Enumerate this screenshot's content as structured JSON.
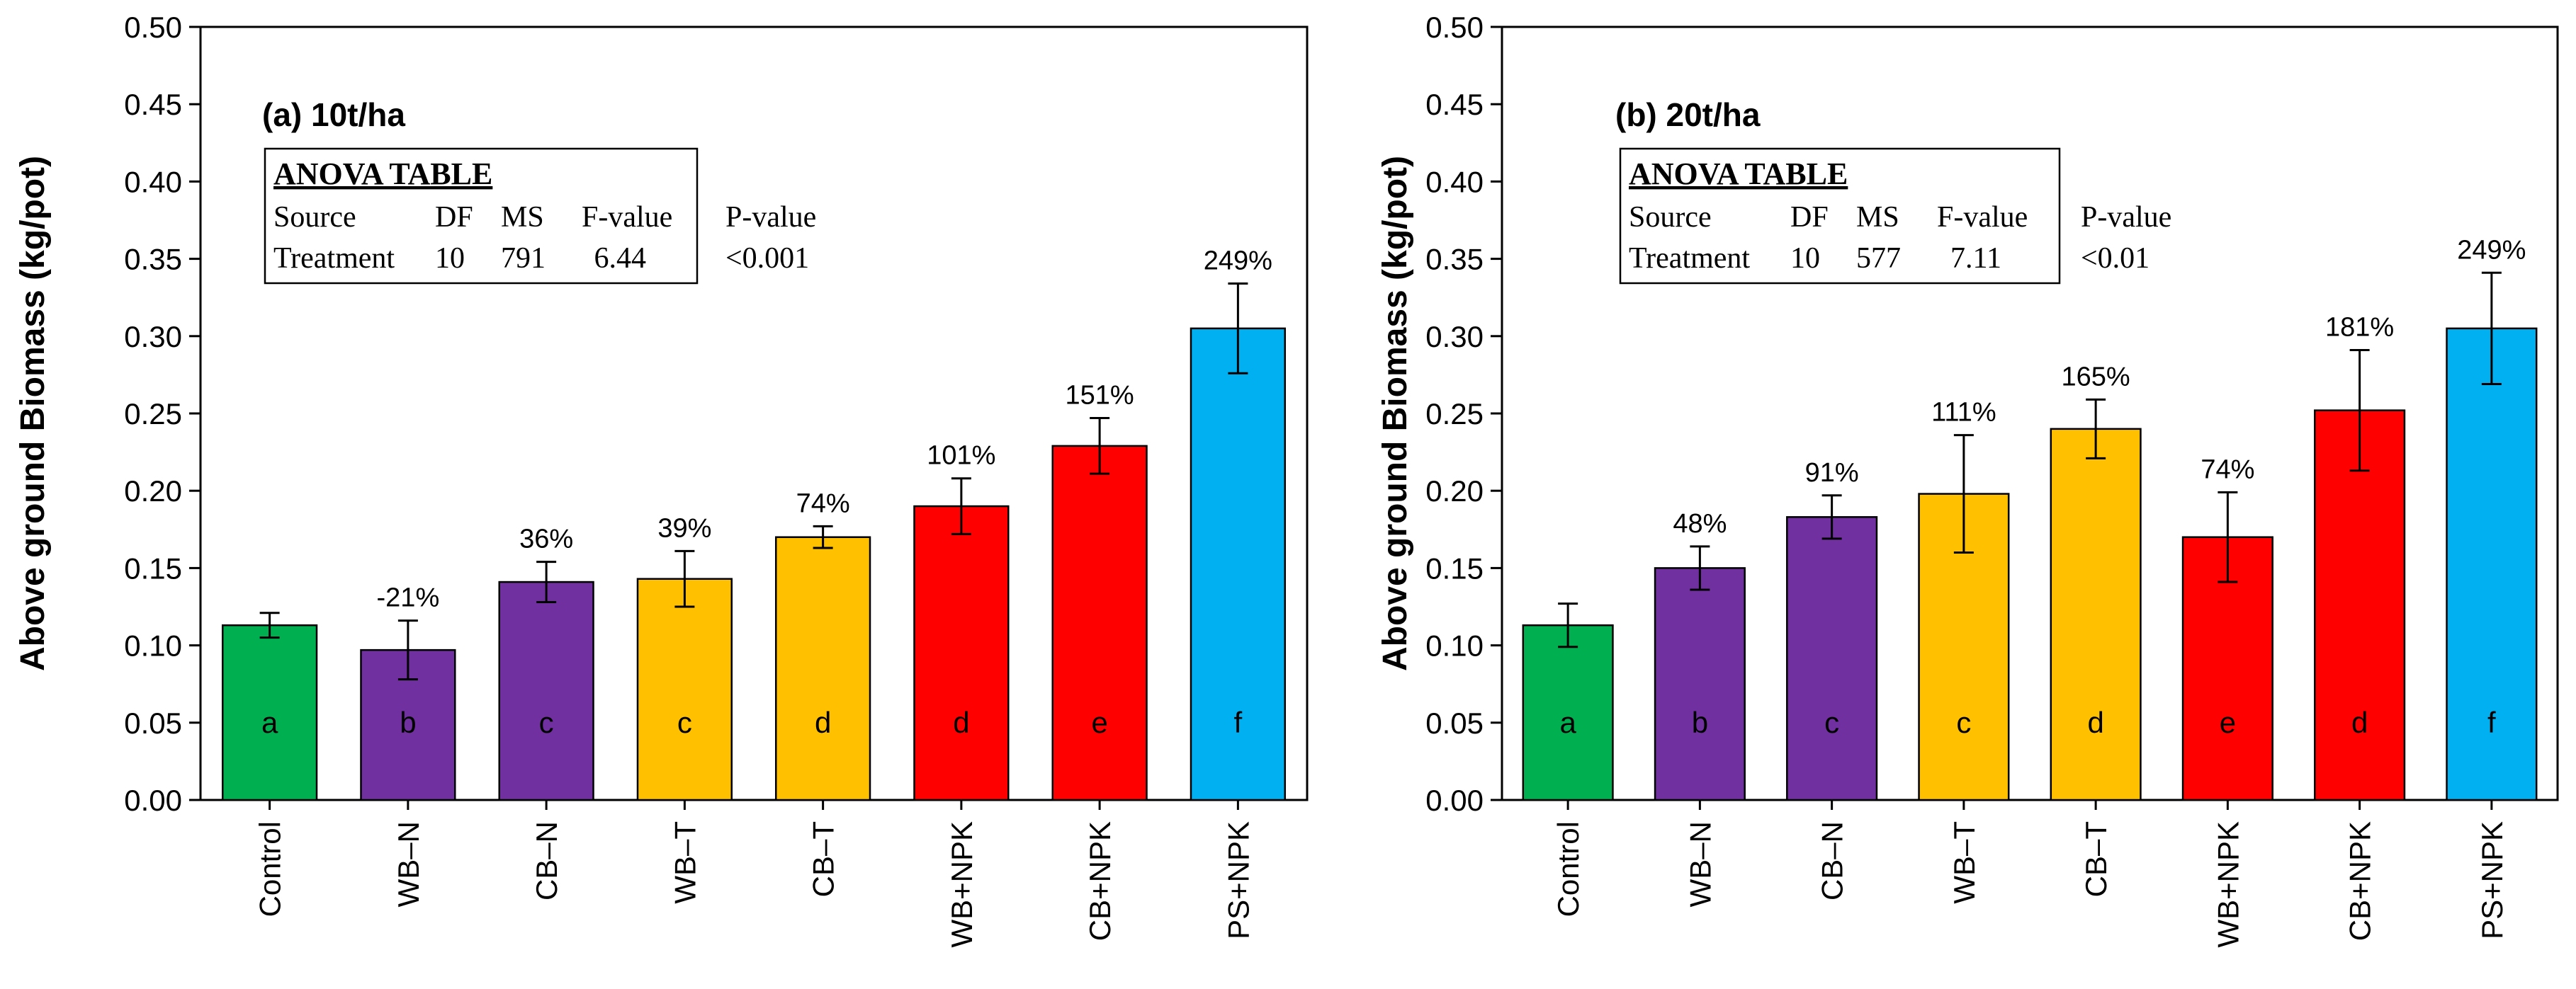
{
  "chart_data": [
    {
      "type": "bar",
      "title": "(a) 10t/ha",
      "xlabel": "",
      "ylabel": "Above ground Biomass (kg/pot)",
      "ylim": [
        0,
        0.5
      ],
      "yticks": [
        "0.00",
        "0.05",
        "0.10",
        "0.15",
        "0.20",
        "0.25",
        "0.30",
        "0.35",
        "0.40",
        "0.45",
        "0.50"
      ],
      "categories": [
        "Control",
        "WB–N",
        "CB–N",
        "WB–T",
        "CB–T",
        "WB+NPK",
        "CB+NPK",
        "PS+NPK"
      ],
      "values": [
        0.113,
        0.097,
        0.141,
        0.143,
        0.17,
        0.19,
        0.229,
        0.305
      ],
      "errors": [
        0.008,
        0.019,
        0.013,
        0.018,
        0.007,
        0.018,
        0.018,
        0.029
      ],
      "colors": [
        "#00b050",
        "#7030a0",
        "#7030a0",
        "#ffc000",
        "#ffc000",
        "#ff0000",
        "#ff0000",
        "#00b0f0"
      ],
      "letters": [
        "a",
        "b",
        "c",
        "c",
        "d",
        "d",
        "e",
        "f"
      ],
      "percent_labels": [
        "",
        "-21%",
        "36%",
        "39%",
        "74%",
        "101%",
        "151%",
        "249%"
      ],
      "anova": {
        "title": "ANOVA TABLE",
        "headers": [
          "Source",
          "DF",
          "MS",
          "F-value",
          "P-value"
        ],
        "row": [
          "Treatment",
          "10",
          "791",
          "6.44",
          "<0.001"
        ]
      }
    },
    {
      "type": "bar",
      "title": "(b)  20t/ha",
      "xlabel": "",
      "ylabel": "Above ground Biomass (kg/pot)",
      "ylim": [
        0,
        0.5
      ],
      "yticks": [
        "0.00",
        "0.05",
        "0.10",
        "0.15",
        "0.20",
        "0.25",
        "0.30",
        "0.35",
        "0.40",
        "0.45",
        "0.50"
      ],
      "categories": [
        "Control",
        "WB–N",
        "CB–N",
        "WB–T",
        "CB–T",
        "WB+NPK",
        "CB+NPK",
        "PS+NPK"
      ],
      "values": [
        0.113,
        0.15,
        0.183,
        0.198,
        0.24,
        0.17,
        0.252,
        0.305
      ],
      "errors": [
        0.014,
        0.014,
        0.014,
        0.038,
        0.019,
        0.029,
        0.039,
        0.036
      ],
      "colors": [
        "#00b050",
        "#7030a0",
        "#7030a0",
        "#ffc000",
        "#ffc000",
        "#ff0000",
        "#ff0000",
        "#00b0f0"
      ],
      "letters": [
        "a",
        "b",
        "c",
        "c",
        "d",
        "e",
        "d",
        "f"
      ],
      "percent_labels": [
        "",
        "48%",
        "91%",
        "111%",
        "165%",
        "74%",
        "181%",
        "249%"
      ],
      "anova": {
        "title": "ANOVA TABLE",
        "headers": [
          "Source",
          "DF",
          "MS",
          "F-value",
          "P-value"
        ],
        "row": [
          "Treatment",
          "10",
          "577",
          "7.11",
          "<0.01"
        ]
      }
    }
  ]
}
